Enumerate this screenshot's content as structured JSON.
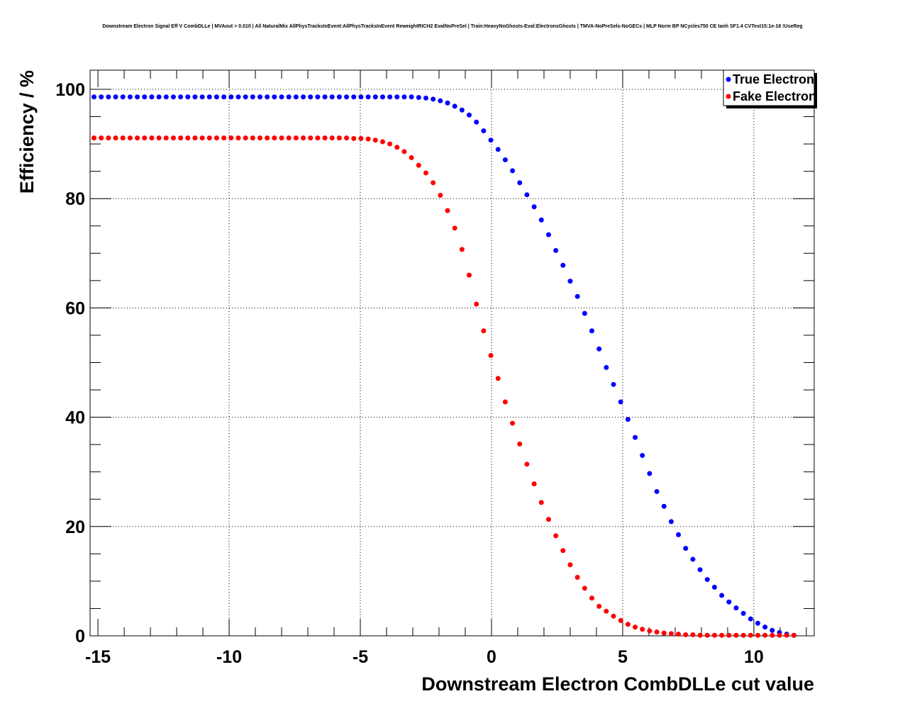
{
  "chart_data": {
    "type": "scatter",
    "title": "Downstream Electron Signal Eff V CombDLLe | MVAout > 0.010 | All NaturalMix AllPhysTracksInEvent:AllPhysTracksInEvent ReweightRICH2 EvalNoPreSel | Train:HeavyNoGhosts-Eval:ElectronsGhosts | TMVA-NoPreSels-NoGECs | MLP Norm BP NCycles750 CE tanh SF1.4 CVTest15:1e-16 !UseReg",
    "xlabel": "Downstream Electron CombDLLe cut value",
    "ylabel": "Efficiency / %",
    "xlim": [
      -15.3,
      12.3
    ],
    "ylim": [
      0,
      103.5
    ],
    "xticks": [
      -15,
      -10,
      -5,
      0,
      5,
      10
    ],
    "xtick_labels": [
      "-15",
      "-10",
      "-5",
      "0",
      "5",
      "10"
    ],
    "yticks": [
      0,
      20,
      40,
      60,
      80,
      100
    ],
    "ytick_labels": [
      "0",
      "20",
      "40",
      "60",
      "80",
      "100"
    ],
    "grid": true,
    "legend_position": "top-right",
    "x_start": -15.15,
    "x_step": 0.275,
    "series": [
      {
        "name": "True Electron",
        "color": "#0000ff",
        "values": [
          98.6,
          98.6,
          98.6,
          98.6,
          98.6,
          98.6,
          98.6,
          98.6,
          98.6,
          98.6,
          98.6,
          98.6,
          98.6,
          98.6,
          98.6,
          98.6,
          98.6,
          98.6,
          98.6,
          98.6,
          98.6,
          98.6,
          98.6,
          98.6,
          98.6,
          98.6,
          98.6,
          98.6,
          98.6,
          98.6,
          98.6,
          98.6,
          98.6,
          98.6,
          98.6,
          98.6,
          98.6,
          98.6,
          98.6,
          98.6,
          98.6,
          98.6,
          98.6,
          98.6,
          98.6,
          98.5,
          98.4,
          98.2,
          97.9,
          97.5,
          96.9,
          96.2,
          95.3,
          94.0,
          92.4,
          90.7,
          89.0,
          87.1,
          85.1,
          82.9,
          80.7,
          78.5,
          76.1,
          73.4,
          70.5,
          67.8,
          64.9,
          62.1,
          59.0,
          55.8,
          52.5,
          49.1,
          46.0,
          42.8,
          39.6,
          36.3,
          33.0,
          29.7,
          26.4,
          23.7,
          20.9,
          18.5,
          16.0,
          14.0,
          12.1,
          10.3,
          8.9,
          7.4,
          6.2,
          5.1,
          4.1,
          3.1,
          2.3,
          1.6,
          1.0,
          0.6,
          0.3,
          0.1
        ]
      },
      {
        "name": "Fake Electron",
        "color": "#ff0000",
        "values": [
          91.1,
          91.1,
          91.1,
          91.1,
          91.1,
          91.1,
          91.1,
          91.1,
          91.1,
          91.1,
          91.1,
          91.1,
          91.1,
          91.1,
          91.1,
          91.1,
          91.1,
          91.1,
          91.1,
          91.1,
          91.1,
          91.1,
          91.1,
          91.1,
          91.1,
          91.1,
          91.1,
          91.1,
          91.1,
          91.1,
          91.1,
          91.1,
          91.1,
          91.1,
          91.1,
          91.1,
          91.0,
          91.0,
          90.9,
          90.7,
          90.4,
          90.0,
          89.4,
          88.6,
          87.5,
          86.1,
          84.7,
          82.9,
          80.6,
          77.8,
          74.6,
          70.7,
          66.0,
          60.7,
          55.8,
          51.3,
          47.1,
          42.8,
          38.9,
          35.1,
          31.4,
          27.8,
          24.4,
          21.3,
          18.3,
          15.6,
          13.0,
          10.7,
          8.7,
          6.9,
          5.4,
          4.5,
          3.6,
          2.8,
          2.1,
          1.6,
          1.2,
          0.9,
          0.7,
          0.5,
          0.4,
          0.3,
          0.2,
          0.2,
          0.1,
          0.1,
          0.1,
          0.1,
          0.1,
          0.1,
          0.1,
          0.1,
          0.1,
          0.1,
          0.1,
          0.1,
          0.1,
          0.1
        ]
      }
    ]
  }
}
